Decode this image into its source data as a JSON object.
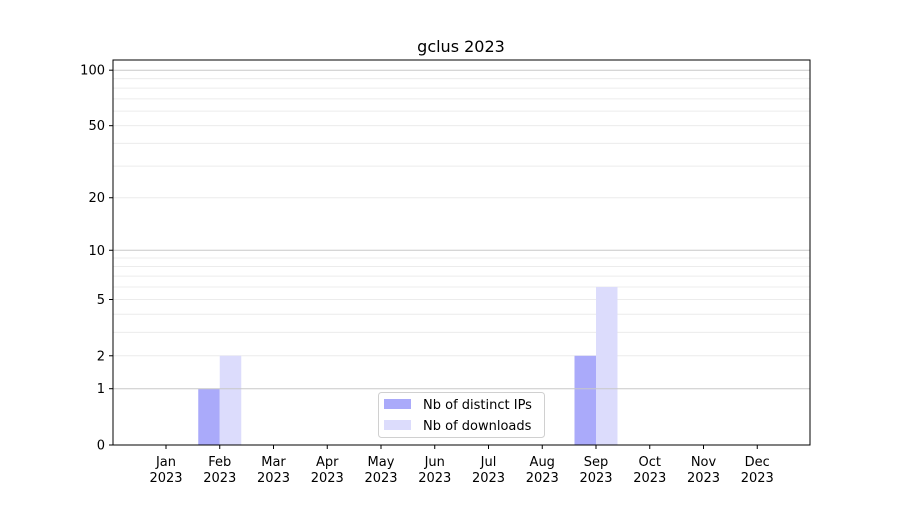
{
  "chart_data": {
    "type": "bar",
    "title": "gclus 2023",
    "xlabel": "",
    "ylabel": "",
    "y_scale": "log(1+y)",
    "ylim": [
      0,
      114
    ],
    "grid": true,
    "legend_position": "bottom-center",
    "categories": [
      "Jan\n2023",
      "Feb\n2023",
      "Mar\n2023",
      "Apr\n2023",
      "May\n2023",
      "Jun\n2023",
      "Jul\n2023",
      "Aug\n2023",
      "Sep\n2023",
      "Oct\n2023",
      "Nov\n2023",
      "Dec\n2023"
    ],
    "y_ticks": [
      0,
      1,
      2,
      5,
      10,
      20,
      50,
      100
    ],
    "series": [
      {
        "name": "Nb of distinct IPs",
        "color": "#aaaafa",
        "values": [
          0,
          1,
          0,
          0,
          0,
          0,
          0,
          0,
          2,
          0,
          0,
          0
        ]
      },
      {
        "name": "Nb of downloads",
        "color": "#dcdcfc",
        "values": [
          0,
          2,
          0,
          0,
          0,
          0,
          0,
          0,
          6,
          0,
          0,
          0
        ]
      }
    ]
  }
}
